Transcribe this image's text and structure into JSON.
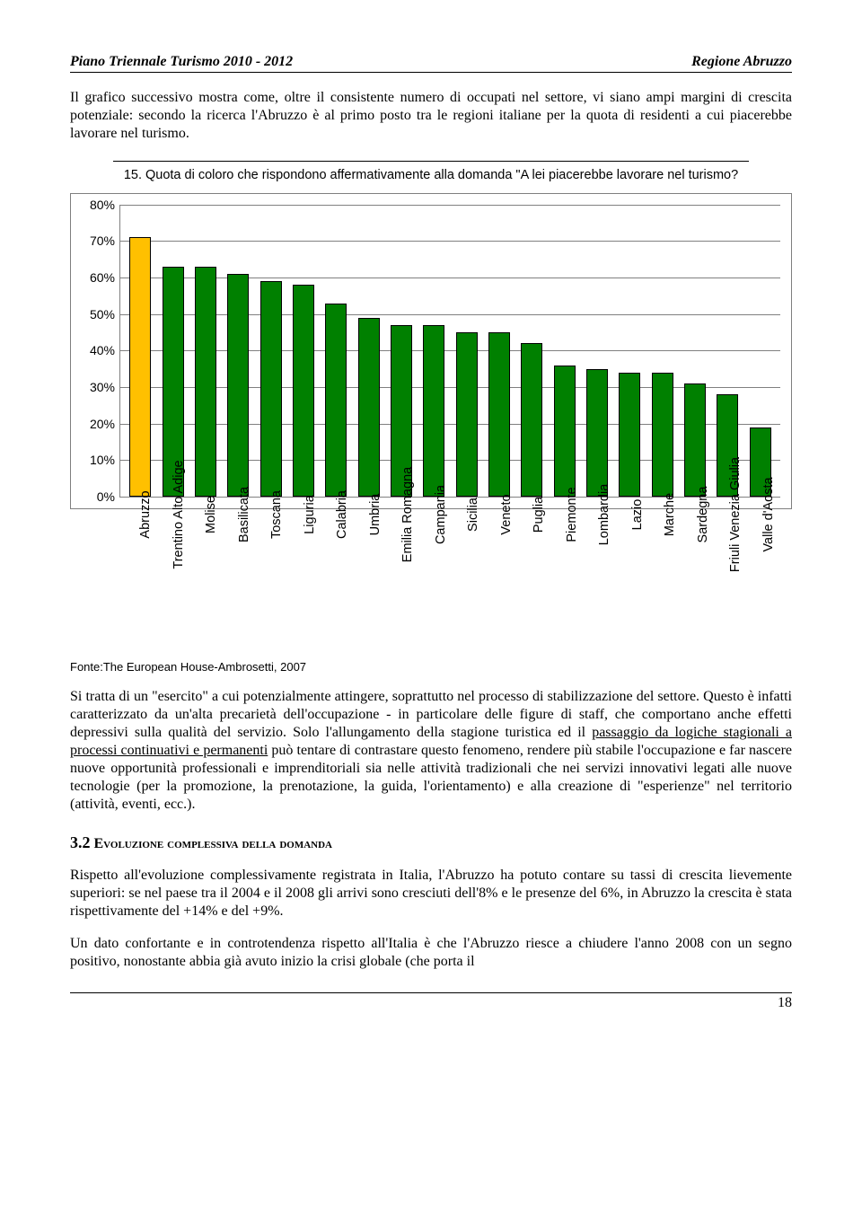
{
  "header": {
    "left": "Piano Triennale Turismo 2010 - 2012",
    "right": "Regione Abruzzo"
  },
  "intro_para": "Il grafico successivo mostra come, oltre il consistente numero di occupati nel settore, vi siano ampi margini di crescita potenziale: secondo la ricerca l'Abruzzo è al primo posto tra le regioni italiane per la quota di residenti a cui piacerebbe lavorare nel turismo.",
  "chart_title": "15. Quota di coloro che rispondono affermativamente alla domanda \"A lei piacerebbe lavorare nel turismo?",
  "chart": {
    "type": "bar",
    "ymax": 80,
    "ytick_step": 10,
    "ylim": [
      0,
      80
    ],
    "background_color": "#ffffff",
    "grid_color": "#808080",
    "label_fontsize": 14,
    "bar_border": "#000000",
    "bars": [
      {
        "label": "Abruzzo",
        "value": 71,
        "color": "#ffc000"
      },
      {
        "label": "Trentino Alto Adige",
        "value": 63,
        "color": "#008000"
      },
      {
        "label": "Molise",
        "value": 63,
        "color": "#008000"
      },
      {
        "label": "Basilicata",
        "value": 61,
        "color": "#008000"
      },
      {
        "label": "Toscana",
        "value": 59,
        "color": "#008000"
      },
      {
        "label": "Liguria",
        "value": 58,
        "color": "#008000"
      },
      {
        "label": "Calabria",
        "value": 53,
        "color": "#008000"
      },
      {
        "label": "Umbria",
        "value": 49,
        "color": "#008000"
      },
      {
        "label": "Emilia Romagna",
        "value": 47,
        "color": "#008000"
      },
      {
        "label": "Campania",
        "value": 47,
        "color": "#008000"
      },
      {
        "label": "Sicilia",
        "value": 45,
        "color": "#008000"
      },
      {
        "label": "Veneto",
        "value": 45,
        "color": "#008000"
      },
      {
        "label": "Puglia",
        "value": 42,
        "color": "#008000"
      },
      {
        "label": "Piemonte",
        "value": 36,
        "color": "#008000"
      },
      {
        "label": "Lombardia",
        "value": 35,
        "color": "#008000"
      },
      {
        "label": "Lazio",
        "value": 34,
        "color": "#008000"
      },
      {
        "label": "Marche",
        "value": 34,
        "color": "#008000"
      },
      {
        "label": "Sardegna",
        "value": 31,
        "color": "#008000"
      },
      {
        "label": "Friuli Venezia Giulia",
        "value": 28,
        "color": "#008000"
      },
      {
        "label": "Valle d'Aosta",
        "value": 19,
        "color": "#008000"
      }
    ]
  },
  "source_note": "Fonte:The European House-Ambrosetti, 2007",
  "body_para": "Si tratta di un \"esercito\" a cui potenzialmente attingere, soprattutto nel processo di stabilizzazione del settore. Questo è infatti caratterizzato da un'alta precarietà dell'occupazione - in particolare delle figure di staff, che comportano anche effetti depressivi sulla qualità del servizio. Solo l'allungamento della stagione turistica ed il passaggio da logiche stagionali a processi continuativi e permanenti può tentare di contrastare questo fenomeno, rendere più stabile l'occupazione e far nascere nuove opportunità professionali e imprenditoriali sia nelle attività tradizionali che nei servizi innovativi legati alle nuove tecnologie (per la promozione, la prenotazione, la guida, l'orientamento) e alla creazione di \"esperienze\" nel territorio (attività, eventi, ecc.).",
  "section_num": "3.2",
  "section_title": "Evoluzione complessiva della domanda",
  "para2": "Rispetto all'evoluzione complessivamente registrata in Italia, l'Abruzzo ha potuto contare su tassi di crescita lievemente superiori: se nel paese tra il 2004 e il 2008 gli arrivi sono cresciuti dell'8% e le presenze del 6%, in Abruzzo la crescita è stata rispettivamente del +14% e del +9%.",
  "para3": "Un dato confortante e in controtendenza rispetto all'Italia è che l'Abruzzo riesce a chiudere l'anno 2008 con un segno positivo, nonostante abbia già avuto inizio la crisi globale (che porta il",
  "page_number": "18"
}
